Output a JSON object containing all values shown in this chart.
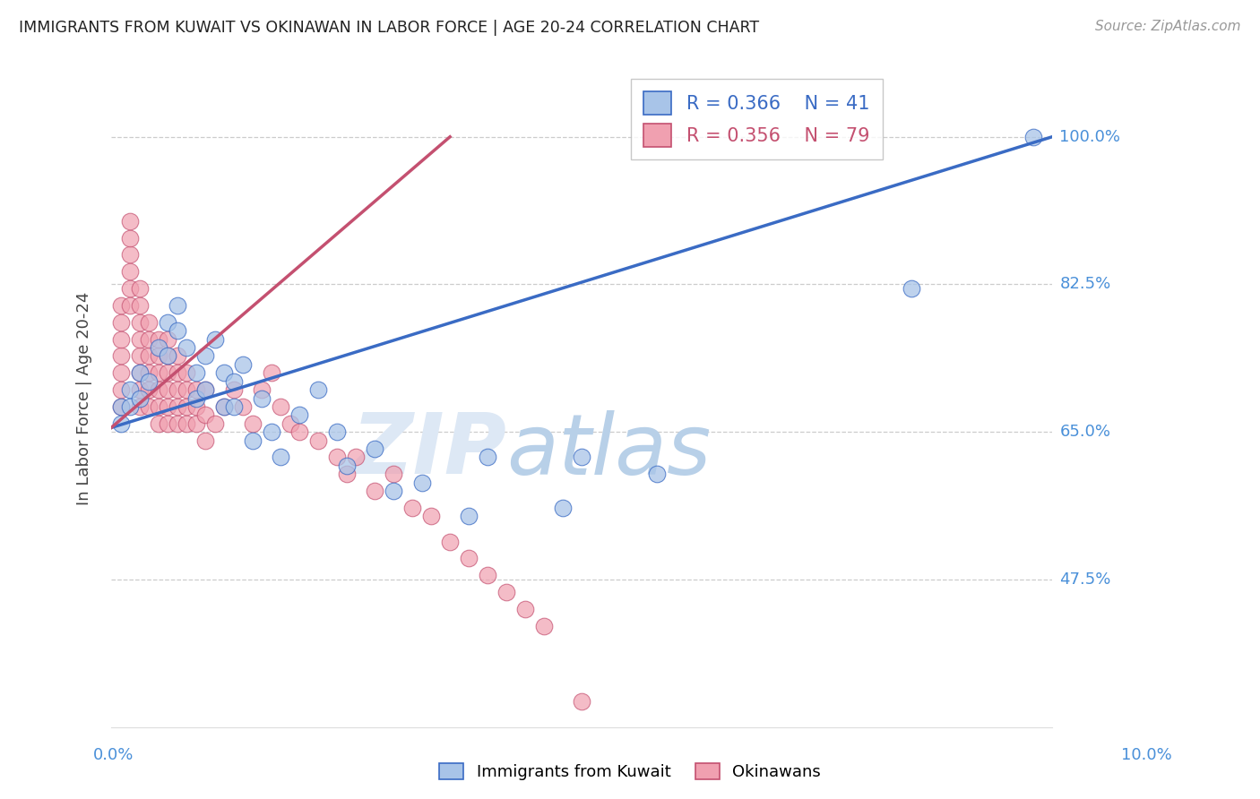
{
  "title": "IMMIGRANTS FROM KUWAIT VS OKINAWAN IN LABOR FORCE | AGE 20-24 CORRELATION CHART",
  "source": "Source: ZipAtlas.com",
  "ylabel": "In Labor Force | Age 20-24",
  "ytick_labels": [
    "47.5%",
    "65.0%",
    "82.5%",
    "100.0%"
  ],
  "ytick_values": [
    0.475,
    0.65,
    0.825,
    1.0
  ],
  "xmin": 0.0,
  "xmax": 0.1,
  "ymin": 0.3,
  "ymax": 1.08,
  "legend_r1": "R = 0.366",
  "legend_n1": "N = 41",
  "legend_r2": "R = 0.356",
  "legend_n2": "N = 79",
  "color_kuwait": "#a8c4e8",
  "color_okinawan": "#f0a0b0",
  "color_kuwait_line": "#3a6bc4",
  "color_okinawan_line": "#c45070",
  "color_axis_labels": "#4a90d9",
  "color_title": "#222222",
  "watermark_zip": "ZIP",
  "watermark_atlas": "atlas",
  "kuwait_x": [
    0.001,
    0.001,
    0.002,
    0.002,
    0.003,
    0.003,
    0.004,
    0.005,
    0.006,
    0.006,
    0.007,
    0.007,
    0.008,
    0.009,
    0.009,
    0.01,
    0.01,
    0.011,
    0.012,
    0.012,
    0.013,
    0.013,
    0.014,
    0.015,
    0.016,
    0.017,
    0.018,
    0.02,
    0.022,
    0.024,
    0.025,
    0.028,
    0.03,
    0.033,
    0.038,
    0.04,
    0.048,
    0.05,
    0.058,
    0.085,
    0.098
  ],
  "kuwait_y": [
    0.68,
    0.66,
    0.7,
    0.68,
    0.72,
    0.69,
    0.71,
    0.75,
    0.78,
    0.74,
    0.8,
    0.77,
    0.75,
    0.72,
    0.69,
    0.74,
    0.7,
    0.76,
    0.72,
    0.68,
    0.71,
    0.68,
    0.73,
    0.64,
    0.69,
    0.65,
    0.62,
    0.67,
    0.7,
    0.65,
    0.61,
    0.63,
    0.58,
    0.59,
    0.55,
    0.62,
    0.56,
    0.62,
    0.6,
    0.82,
    1.0
  ],
  "okinawan_x": [
    0.001,
    0.001,
    0.001,
    0.001,
    0.001,
    0.001,
    0.001,
    0.002,
    0.002,
    0.002,
    0.002,
    0.002,
    0.002,
    0.003,
    0.003,
    0.003,
    0.003,
    0.003,
    0.003,
    0.003,
    0.003,
    0.004,
    0.004,
    0.004,
    0.004,
    0.004,
    0.004,
    0.005,
    0.005,
    0.005,
    0.005,
    0.005,
    0.005,
    0.006,
    0.006,
    0.006,
    0.006,
    0.006,
    0.006,
    0.007,
    0.007,
    0.007,
    0.007,
    0.007,
    0.008,
    0.008,
    0.008,
    0.008,
    0.009,
    0.009,
    0.009,
    0.01,
    0.01,
    0.01,
    0.011,
    0.012,
    0.013,
    0.014,
    0.015,
    0.016,
    0.017,
    0.018,
    0.019,
    0.02,
    0.022,
    0.024,
    0.025,
    0.026,
    0.028,
    0.03,
    0.032,
    0.034,
    0.036,
    0.038,
    0.04,
    0.042,
    0.044,
    0.046,
    0.05
  ],
  "okinawan_y": [
    0.68,
    0.7,
    0.72,
    0.74,
    0.76,
    0.78,
    0.8,
    0.8,
    0.82,
    0.84,
    0.86,
    0.88,
    0.9,
    0.68,
    0.7,
    0.72,
    0.74,
    0.76,
    0.78,
    0.8,
    0.82,
    0.68,
    0.7,
    0.72,
    0.74,
    0.76,
    0.78,
    0.66,
    0.68,
    0.7,
    0.72,
    0.74,
    0.76,
    0.66,
    0.68,
    0.7,
    0.72,
    0.74,
    0.76,
    0.66,
    0.68,
    0.7,
    0.72,
    0.74,
    0.66,
    0.68,
    0.7,
    0.72,
    0.66,
    0.68,
    0.7,
    0.64,
    0.67,
    0.7,
    0.66,
    0.68,
    0.7,
    0.68,
    0.66,
    0.7,
    0.72,
    0.68,
    0.66,
    0.65,
    0.64,
    0.62,
    0.6,
    0.62,
    0.58,
    0.6,
    0.56,
    0.55,
    0.52,
    0.5,
    0.48,
    0.46,
    0.44,
    0.42,
    0.33
  ],
  "blue_line_x0": 0.0,
  "blue_line_y0": 0.655,
  "blue_line_x1": 0.1,
  "blue_line_y1": 1.0,
  "pink_line_x0": 0.0,
  "pink_line_y0": 0.655,
  "pink_line_x1": 0.036,
  "pink_line_y1": 1.0
}
